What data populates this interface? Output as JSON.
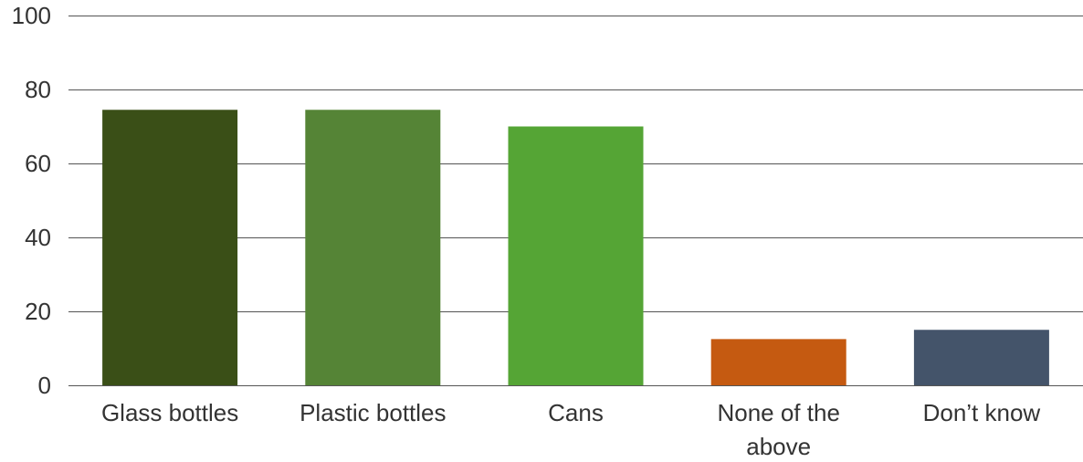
{
  "chart_data": {
    "type": "bar",
    "title": "",
    "xlabel": "",
    "ylabel": "",
    "categories": [
      "Glass bottles",
      "Plastic bottles",
      "Cans",
      "None of the above",
      "Don’t know"
    ],
    "category_label_lines": [
      [
        "Glass bottles"
      ],
      [
        "Plastic bottles"
      ],
      [
        "Cans"
      ],
      [
        "None of the",
        "above"
      ],
      [
        "Don’t know"
      ]
    ],
    "values": [
      74.5,
      74.5,
      70,
      12.5,
      15
    ],
    "colors": [
      "#3a4f17",
      "#558436",
      "#55a535",
      "#c55a11",
      "#44546a"
    ],
    "ylim": [
      0,
      100
    ],
    "yticks": [
      0,
      20,
      40,
      60,
      80,
      100
    ],
    "grid": true,
    "legend": "none"
  }
}
